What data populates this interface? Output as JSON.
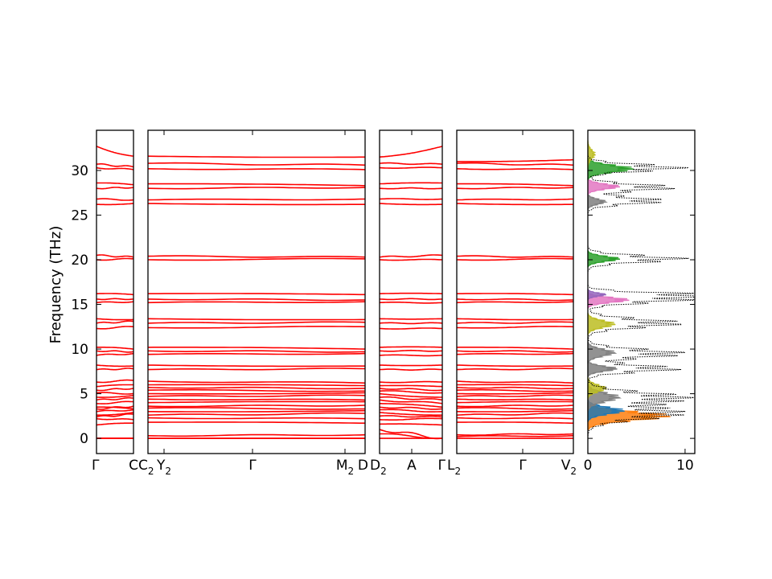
{
  "chart_data": {
    "type": "line",
    "title": "",
    "ylabel": "Frequency (THz)",
    "ylim": [
      -1.7,
      34.5
    ],
    "yticks": [
      0,
      5,
      10,
      15,
      20,
      25,
      30
    ],
    "band_color": "#ff0000",
    "zero_line_color": "#0000ff",
    "panels": [
      {
        "name": "panel-1",
        "x_ticks": [
          {
            "label": "Γ",
            "sub": ""
          },
          {
            "label": "C",
            "sub": ""
          }
        ],
        "start_values": [
          0,
          0,
          0,
          1.5,
          2.2,
          2.4,
          2.6,
          3.0,
          3.3,
          3.5,
          3.9,
          4.3,
          4.6,
          5.1,
          5.4,
          5.8,
          6.3,
          7.7,
          8.2,
          9.3,
          9.8,
          10.2,
          12.3,
          12.9,
          13.4,
          15.2,
          15.6,
          16.2,
          20.0,
          20.5,
          26.2,
          26.8,
          28.0,
          28.6,
          30.3,
          30.7,
          32.7
        ],
        "end_values": [
          0,
          0,
          0,
          1.7,
          2.1,
          2.7,
          2.9,
          3.2,
          3.6,
          3.3,
          4.1,
          4.5,
          4.8,
          5.0,
          5.6,
          6.0,
          6.5,
          7.8,
          8.1,
          9.5,
          9.7,
          10.0,
          12.5,
          13.1,
          13.3,
          15.3,
          15.6,
          16.1,
          20.1,
          20.3,
          26.3,
          26.7,
          28.1,
          28.4,
          30.1,
          30.4,
          31.6
        ]
      },
      {
        "name": "panel-2",
        "x_ticks": [
          {
            "label": "C",
            "sub": "2"
          },
          {
            "label": "Y",
            "sub": "2"
          },
          {
            "label": "Γ",
            "sub": ""
          },
          {
            "label": "M",
            "sub": "2"
          },
          {
            "label": "D",
            "sub": ""
          }
        ],
        "start_values": [
          0,
          0,
          0.3,
          1.8,
          2.3,
          2.6,
          3.0,
          3.4,
          3.6,
          4.0,
          4.4,
          4.7,
          5.0,
          5.4,
          5.7,
          6.0,
          6.4,
          7.7,
          8.2,
          9.4,
          9.8,
          10.2,
          12.4,
          12.9,
          13.4,
          15.2,
          15.6,
          16.2,
          20.0,
          20.4,
          26.3,
          26.7,
          28.0,
          28.5,
          30.2,
          30.8,
          31.6
        ],
        "end_values": [
          0,
          0,
          0.4,
          1.7,
          2.2,
          2.8,
          3.1,
          3.3,
          3.7,
          4.1,
          4.3,
          4.8,
          5.1,
          5.3,
          5.6,
          5.9,
          6.2,
          7.8,
          8.1,
          9.5,
          9.7,
          10.0,
          12.5,
          13.0,
          13.3,
          15.3,
          15.5,
          16.1,
          20.1,
          20.3,
          26.2,
          26.8,
          28.1,
          28.3,
          30.1,
          30.6,
          31.5
        ]
      },
      {
        "name": "panel-3",
        "x_ticks": [
          {
            "label": "D",
            "sub": "2"
          },
          {
            "label": "A",
            "sub": ""
          },
          {
            "label": "Γ",
            "sub": ""
          }
        ],
        "start_values": [
          0,
          0.5,
          1.0,
          1.6,
          2.1,
          2.5,
          2.9,
          3.2,
          3.5,
          3.9,
          4.3,
          4.6,
          5.0,
          5.3,
          5.6,
          5.9,
          6.3,
          7.7,
          8.2,
          9.3,
          9.8,
          10.2,
          12.3,
          12.9,
          13.4,
          15.2,
          15.6,
          16.2,
          20.0,
          20.3,
          26.3,
          26.8,
          28.0,
          28.5,
          30.3,
          30.8,
          31.5
        ],
        "end_values": [
          0,
          0,
          0,
          1.5,
          2.2,
          2.4,
          2.6,
          3.0,
          3.3,
          3.5,
          3.9,
          4.3,
          4.6,
          5.1,
          5.4,
          5.8,
          6.3,
          7.7,
          8.2,
          9.3,
          9.8,
          10.2,
          12.3,
          12.9,
          13.4,
          15.2,
          15.6,
          16.2,
          20.0,
          20.5,
          26.2,
          26.8,
          28.0,
          28.6,
          30.3,
          30.7,
          32.7
        ]
      },
      {
        "name": "panel-4",
        "x_ticks": [
          {
            "label": "L",
            "sub": "2"
          },
          {
            "label": "Γ",
            "sub": ""
          },
          {
            "label": "V",
            "sub": "2"
          }
        ],
        "start_values": [
          0,
          0.2,
          0.4,
          1.8,
          2.3,
          2.6,
          3.0,
          3.4,
          3.6,
          4.0,
          4.4,
          4.7,
          5.0,
          5.4,
          5.7,
          6.0,
          6.4,
          7.7,
          8.2,
          9.4,
          9.8,
          10.2,
          12.4,
          12.9,
          13.4,
          15.2,
          15.6,
          16.2,
          20.0,
          20.4,
          26.3,
          26.7,
          28.0,
          28.5,
          30.2,
          30.8,
          31.0
        ],
        "end_values": [
          0,
          0.3,
          0.5,
          1.7,
          2.2,
          2.8,
          3.1,
          3.3,
          3.7,
          4.1,
          4.3,
          4.8,
          5.1,
          5.3,
          5.6,
          5.9,
          6.2,
          7.8,
          8.1,
          9.5,
          9.7,
          10.0,
          12.5,
          13.0,
          13.3,
          15.3,
          15.5,
          16.1,
          20.1,
          20.3,
          26.2,
          26.8,
          28.1,
          28.3,
          30.1,
          30.6,
          31.2
        ]
      }
    ],
    "dos": {
      "name": "dos-panel",
      "xlim": [
        0,
        11
      ],
      "x_ticks": [
        {
          "label": "0",
          "sub": ""
        },
        {
          "label": "10",
          "sub": ""
        }
      ],
      "total_color": "#000000",
      "peaks": [
        {
          "center": 2.5,
          "width": 0.5,
          "height": 9.0,
          "color": "#ff7f0e"
        },
        {
          "center": 3.1,
          "width": 0.4,
          "height": 4.0,
          "color": "#1f77b4"
        },
        {
          "center": 4.6,
          "width": 0.5,
          "height": 3.5,
          "color": "#7f7f7f"
        },
        {
          "center": 5.6,
          "width": 0.4,
          "height": 2.0,
          "color": "#bcbd22"
        },
        {
          "center": 7.8,
          "width": 0.3,
          "height": 3.2,
          "color": "#7f7f7f"
        },
        {
          "center": 9.6,
          "width": 0.4,
          "height": 3.0,
          "color": "#7f7f7f"
        },
        {
          "center": 12.8,
          "width": 0.4,
          "height": 3.0,
          "color": "#bcbd22"
        },
        {
          "center": 15.5,
          "width": 0.3,
          "height": 4.5,
          "color": "#e377c2"
        },
        {
          "center": 16.1,
          "width": 0.2,
          "height": 2.0,
          "color": "#9467bd"
        },
        {
          "center": 20.1,
          "width": 0.3,
          "height": 3.5,
          "color": "#2ca02c"
        },
        {
          "center": 26.5,
          "width": 0.3,
          "height": 2.0,
          "color": "#7f7f7f"
        },
        {
          "center": 28.2,
          "width": 0.3,
          "height": 3.5,
          "color": "#e377c2"
        },
        {
          "center": 30.2,
          "width": 0.4,
          "height": 5.0,
          "color": "#2ca02c"
        },
        {
          "center": 31.8,
          "width": 0.5,
          "height": 0.8,
          "color": "#bcbd22"
        }
      ],
      "total_peaks": [
        {
          "center": 2.8,
          "width": 0.7,
          "height": 10.2
        },
        {
          "center": 4.6,
          "width": 0.6,
          "height": 10.8
        },
        {
          "center": 7.8,
          "width": 0.4,
          "height": 10.0
        },
        {
          "center": 9.5,
          "width": 0.5,
          "height": 10.5
        },
        {
          "center": 12.9,
          "width": 0.5,
          "height": 10.3
        },
        {
          "center": 15.5,
          "width": 0.4,
          "height": 10.0
        },
        {
          "center": 16.1,
          "width": 0.3,
          "height": 10.5
        },
        {
          "center": 20.1,
          "width": 0.4,
          "height": 10.5
        },
        {
          "center": 26.6,
          "width": 0.4,
          "height": 8.5
        },
        {
          "center": 28.1,
          "width": 0.4,
          "height": 9.5
        },
        {
          "center": 30.3,
          "width": 0.4,
          "height": 10.5
        }
      ]
    }
  }
}
